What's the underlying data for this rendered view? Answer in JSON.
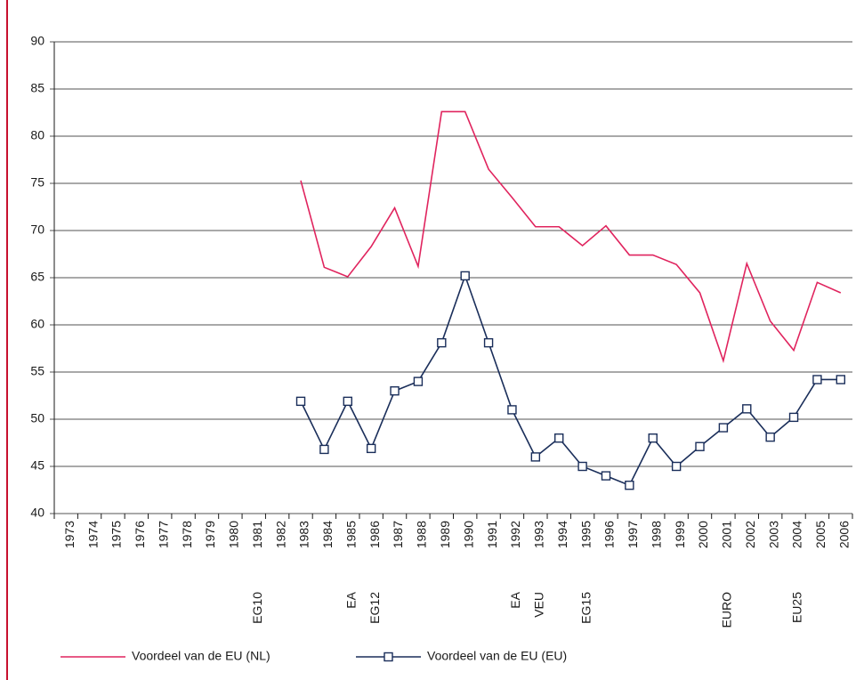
{
  "chart_data": {
    "type": "line",
    "categories": [
      "1973",
      "1974",
      "1975",
      "1976",
      "1977",
      "1978",
      "1979",
      "1980",
      "1981",
      "1982",
      "1983",
      "1984",
      "1985",
      "1986",
      "1987",
      "1988",
      "1989",
      "1990",
      "1991",
      "1992",
      "1993",
      "1994",
      "1995",
      "1996",
      "1997",
      "1998",
      "1999",
      "2000",
      "2001",
      "2002",
      "2003",
      "2004",
      "2005",
      "2006"
    ],
    "events": [
      null,
      null,
      null,
      null,
      null,
      null,
      null,
      null,
      "EG10",
      null,
      null,
      null,
      "EA",
      "EG12",
      null,
      null,
      null,
      null,
      null,
      "EA",
      "VEU",
      null,
      "EG15",
      null,
      null,
      null,
      null,
      null,
      "EURO",
      null,
      null,
      "EU25",
      null,
      null
    ],
    "series": [
      {
        "name": "Voordeel van de EU (NL)",
        "color": "#e0245e",
        "marker": null,
        "values": [
          null,
          null,
          null,
          null,
          null,
          null,
          null,
          null,
          null,
          null,
          75.3,
          66.1,
          65.1,
          68.3,
          72.4,
          66.2,
          82.6,
          82.6,
          76.5,
          73.5,
          70.4,
          70.4,
          68.4,
          70.5,
          67.4,
          67.4,
          66.4,
          63.4,
          56.2,
          66.5,
          60.4,
          57.3,
          64.5,
          63.4
        ]
      },
      {
        "name": "Voordeel van de EU (EU)",
        "color": "#1a2e5a",
        "marker": "square",
        "values": [
          null,
          null,
          null,
          null,
          null,
          null,
          null,
          null,
          null,
          null,
          51.9,
          46.8,
          51.9,
          46.9,
          53.0,
          54.0,
          58.1,
          65.2,
          58.1,
          51.0,
          46.0,
          48.0,
          45.0,
          44.0,
          43.0,
          48.0,
          45.0,
          47.1,
          49.1,
          51.1,
          48.1,
          50.2,
          54.2,
          54.2
        ]
      }
    ],
    "ylim": [
      40,
      90
    ],
    "yticks": [
      40,
      45,
      50,
      55,
      60,
      65,
      70,
      75,
      80,
      85,
      90
    ],
    "grid": true
  }
}
